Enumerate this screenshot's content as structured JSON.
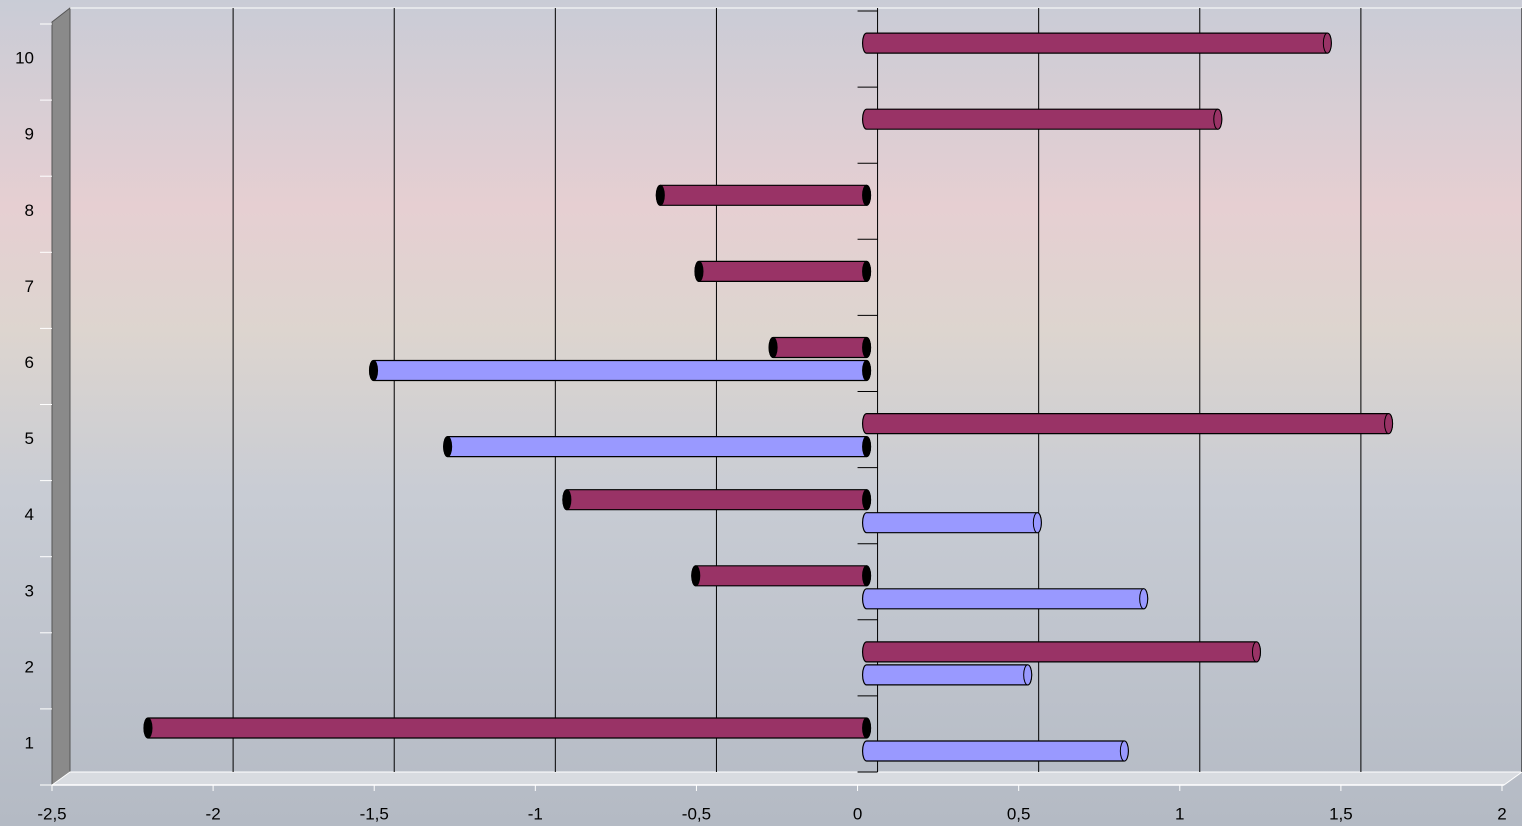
{
  "chart_data": {
    "type": "bar",
    "orientation": "horizontal",
    "categories": [
      "1",
      "2",
      "3",
      "4",
      "5",
      "6",
      "7",
      "8",
      "9",
      "10"
    ],
    "series": [
      {
        "color": "#993366",
        "values": [
          -2.23,
          1.21,
          -0.53,
          -0.93,
          1.62,
          -0.29,
          -0.52,
          -0.64,
          1.09,
          1.43
        ]
      },
      {
        "color": "#9999ff",
        "values": [
          0.8,
          0.5,
          0.86,
          0.53,
          -1.3,
          -1.53,
          null,
          null,
          null,
          null
        ]
      }
    ],
    "xlim": [
      -2.5,
      2
    ],
    "xticks": [
      {
        "value": -2.5,
        "label": "-2,5"
      },
      -2,
      {
        "value": -1.5,
        "label": "-1,5"
      },
      -1,
      {
        "value": -0.5,
        "label": "-0,5"
      },
      0,
      {
        "value": 0.5,
        "label": "0,5"
      },
      1,
      {
        "value": 1.5,
        "label": "1,5"
      },
      2
    ],
    "grid": true
  }
}
